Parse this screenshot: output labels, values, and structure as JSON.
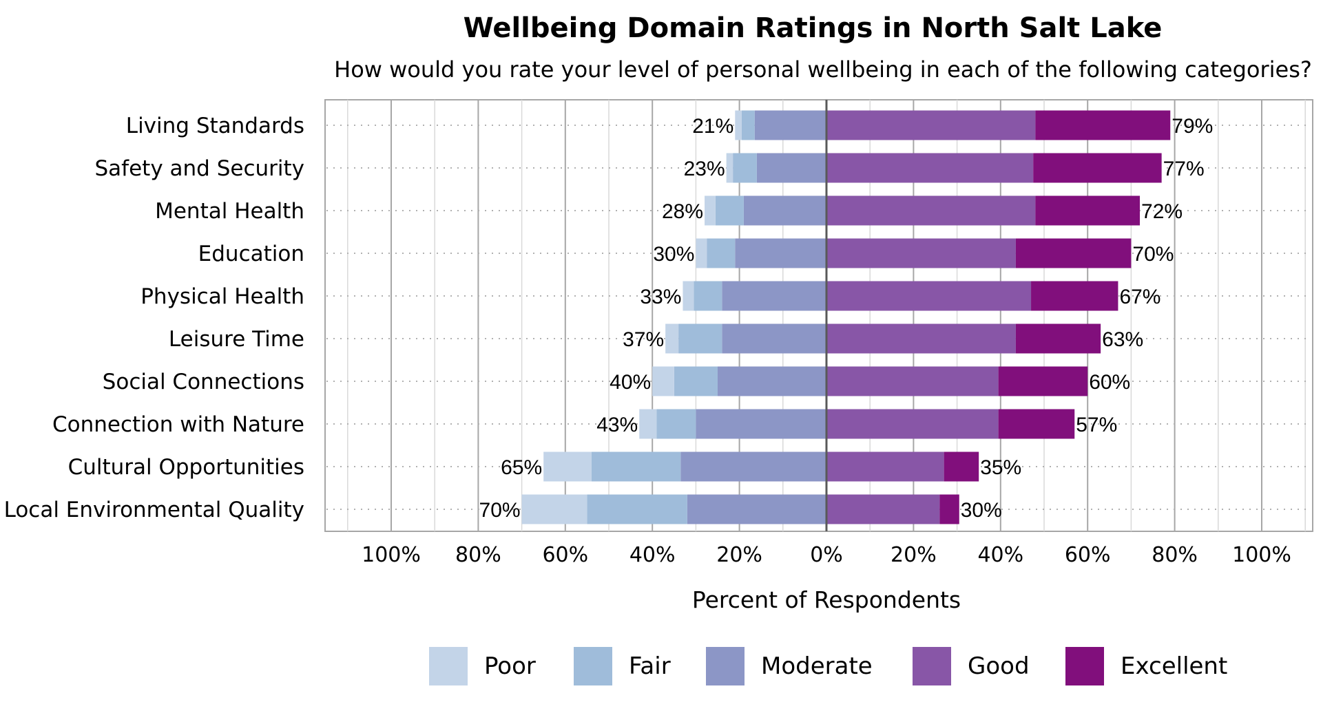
{
  "chart_data": {
    "type": "bar",
    "orientation": "horizontal-diverging",
    "title": "Wellbeing Domain Ratings in North Salt Lake",
    "subtitle": "How would you rate your level of personal wellbeing in each of the following categories?",
    "xlabel": "Percent of Respondents",
    "xlim": [
      -100,
      100
    ],
    "tick_values": [
      -100,
      -80,
      -60,
      -40,
      -20,
      0,
      20,
      40,
      60,
      80,
      100
    ],
    "tick_labels": [
      "100%",
      "80%",
      "60%",
      "40%",
      "20%",
      "0%",
      "20%",
      "40%",
      "60%",
      "80%",
      "100%"
    ],
    "categories": [
      "Living Standards",
      "Safety and Security",
      "Mental Health",
      "Education",
      "Physical Health",
      "Leisure Time",
      "Social Connections",
      "Connection with Nature",
      "Cultural Opportunities",
      "Local Environmental Quality"
    ],
    "series": [
      {
        "name": "Poor",
        "side": "negative",
        "color": "#c3d4e8",
        "values": [
          1.5,
          1.5,
          2.5,
          2.5,
          2.5,
          3.0,
          5.0,
          4.0,
          11.0,
          15.0
        ]
      },
      {
        "name": "Fair",
        "side": "negative",
        "color": "#9fbcda",
        "values": [
          3.0,
          5.5,
          6.5,
          6.5,
          6.5,
          10.0,
          10.0,
          9.0,
          20.5,
          23.0
        ]
      },
      {
        "name": "Moderate",
        "side": "negative",
        "color": "#8c96c6",
        "values": [
          16.5,
          16.0,
          19.0,
          21.0,
          24.0,
          24.0,
          25.0,
          30.0,
          33.5,
          32.0
        ]
      },
      {
        "name": "Good",
        "side": "positive",
        "color": "#8856a7",
        "values": [
          48.0,
          47.5,
          48.0,
          43.5,
          47.0,
          43.5,
          39.5,
          39.5,
          27.0,
          26.0
        ]
      },
      {
        "name": "Excellent",
        "side": "positive",
        "color": "#810f7c",
        "values": [
          31.0,
          29.5,
          24.0,
          26.5,
          20.0,
          19.5,
          20.5,
          17.5,
          8.0,
          4.5
        ]
      }
    ],
    "negative_totals": [
      "21%",
      "23%",
      "28%",
      "30%",
      "33%",
      "37%",
      "40%",
      "43%",
      "65%",
      "70%"
    ],
    "positive_totals": [
      "79%",
      "77%",
      "72%",
      "70%",
      "67%",
      "63%",
      "60%",
      "57%",
      "35%",
      "30%"
    ],
    "grid": true,
    "legend_position": "bottom"
  }
}
